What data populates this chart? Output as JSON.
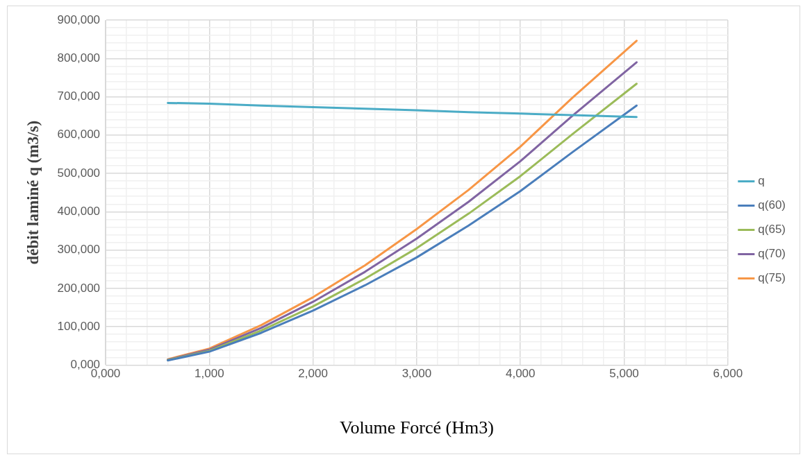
{
  "chart_data": {
    "type": "line",
    "xlabel": "Volume Forcé (Hm3)",
    "ylabel": "débit laminé q (m3/s)",
    "x": [
      0.6,
      1,
      1.5,
      2,
      2.5,
      3,
      3.5,
      4,
      4.5,
      5.12
    ],
    "series": [
      {
        "name": "q",
        "color": "#4bacc6",
        "values": [
          684,
          682,
          677,
          673,
          669,
          665,
          660,
          656,
          652,
          647
        ]
      },
      {
        "name": "q(60)",
        "color": "#4a7ebb",
        "values": [
          12,
          35,
          84,
          142,
          208,
          281,
          364,
          454,
          555,
          677
        ]
      },
      {
        "name": "q(65)",
        "color": "#9bbb59",
        "values": [
          13,
          37,
          90,
          153,
          225,
          305,
          395,
          493,
          602,
          734
        ]
      },
      {
        "name": "q(70)",
        "color": "#8064a2",
        "values": [
          14,
          40,
          97,
          165,
          243,
          330,
          426,
          532,
          650,
          790
        ]
      },
      {
        "name": "q(75)",
        "color": "#f79646",
        "values": [
          15,
          43,
          104,
          177,
          260,
          355,
          457,
          570,
          697,
          846
        ]
      }
    ],
    "xlim": [
      0,
      6
    ],
    "xticks": [
      {
        "value": 0,
        "label": "0,000"
      },
      {
        "value": 0.2,
        "label": null
      },
      {
        "value": 0.4,
        "label": null
      },
      {
        "value": 0.6,
        "label": null
      },
      {
        "value": 0.8,
        "label": null
      },
      {
        "value": 1,
        "label": "1,000"
      },
      {
        "value": 1.2,
        "label": null
      },
      {
        "value": 1.4,
        "label": null
      },
      {
        "value": 1.6,
        "label": null
      },
      {
        "value": 1.8,
        "label": null
      },
      {
        "value": 2,
        "label": "2,000"
      },
      {
        "value": 2.2,
        "label": null
      },
      {
        "value": 2.4,
        "label": null
      },
      {
        "value": 2.6,
        "label": null
      },
      {
        "value": 2.8,
        "label": null
      },
      {
        "value": 3,
        "label": "3,000"
      },
      {
        "value": 3.2,
        "label": null
      },
      {
        "value": 3.4,
        "label": null
      },
      {
        "value": 3.6,
        "label": null
      },
      {
        "value": 3.8,
        "label": null
      },
      {
        "value": 4,
        "label": "4,000"
      },
      {
        "value": 4.2,
        "label": null
      },
      {
        "value": 4.4,
        "label": null
      },
      {
        "value": 4.6,
        "label": null
      },
      {
        "value": 4.8,
        "label": null
      },
      {
        "value": 5,
        "label": "5,000"
      },
      {
        "value": 5.2,
        "label": null
      },
      {
        "value": 5.4,
        "label": null
      },
      {
        "value": 5.6,
        "label": null
      },
      {
        "value": 5.8,
        "label": null
      },
      {
        "value": 6,
        "label": "6,000"
      }
    ],
    "ylim": [
      0,
      900
    ],
    "yticks": [
      {
        "value": 0,
        "label": "0,000"
      },
      {
        "value": 20,
        "label": null
      },
      {
        "value": 40,
        "label": null
      },
      {
        "value": 60,
        "label": null
      },
      {
        "value": 80,
        "label": null
      },
      {
        "value": 100,
        "label": "100,000"
      },
      {
        "value": 120,
        "label": null
      },
      {
        "value": 140,
        "label": null
      },
      {
        "value": 160,
        "label": null
      },
      {
        "value": 180,
        "label": null
      },
      {
        "value": 200,
        "label": "200,000"
      },
      {
        "value": 220,
        "label": null
      },
      {
        "value": 240,
        "label": null
      },
      {
        "value": 260,
        "label": null
      },
      {
        "value": 280,
        "label": null
      },
      {
        "value": 300,
        "label": "300,000"
      },
      {
        "value": 320,
        "label": null
      },
      {
        "value": 340,
        "label": null
      },
      {
        "value": 360,
        "label": null
      },
      {
        "value": 380,
        "label": null
      },
      {
        "value": 400,
        "label": "400,000"
      },
      {
        "value": 420,
        "label": null
      },
      {
        "value": 440,
        "label": null
      },
      {
        "value": 460,
        "label": null
      },
      {
        "value": 480,
        "label": null
      },
      {
        "value": 500,
        "label": "500,000"
      },
      {
        "value": 520,
        "label": null
      },
      {
        "value": 540,
        "label": null
      },
      {
        "value": 560,
        "label": null
      },
      {
        "value": 580,
        "label": null
      },
      {
        "value": 600,
        "label": "600,000"
      },
      {
        "value": 620,
        "label": null
      },
      {
        "value": 640,
        "label": null
      },
      {
        "value": 660,
        "label": null
      },
      {
        "value": 680,
        "label": null
      },
      {
        "value": 700,
        "label": "700,000"
      },
      {
        "value": 720,
        "label": null
      },
      {
        "value": 740,
        "label": null
      },
      {
        "value": 760,
        "label": null
      },
      {
        "value": 780,
        "label": null
      },
      {
        "value": 800,
        "label": "800,000"
      },
      {
        "value": 820,
        "label": null
      },
      {
        "value": 840,
        "label": null
      },
      {
        "value": 860,
        "label": null
      },
      {
        "value": 880,
        "label": null
      },
      {
        "value": 900,
        "label": "900,000"
      }
    ],
    "grid": true,
    "legend": "right",
    "marker": "none",
    "line_style": "solid"
  }
}
